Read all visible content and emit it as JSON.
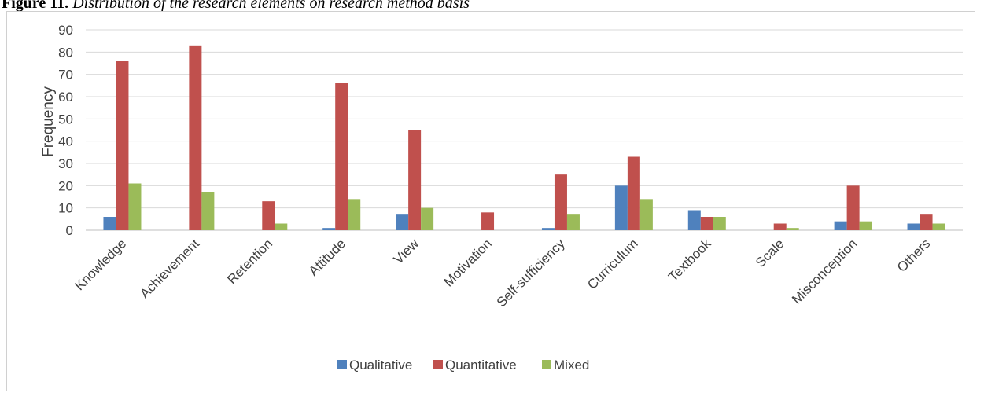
{
  "caption": {
    "label": "Figure 11.",
    "text": "Distribution of the research elements on research method basis"
  },
  "chart_data": {
    "type": "bar",
    "title": "",
    "xlabel": "",
    "ylabel": "Frequency",
    "ylim": [
      0,
      90
    ],
    "yticks": [
      0,
      10,
      20,
      30,
      40,
      50,
      60,
      70,
      80,
      90
    ],
    "grid": true,
    "legend_position": "bottom",
    "categories": [
      "Knowledge",
      "Achievement",
      "Retention",
      "Attitude",
      "View",
      "Motivation",
      "Self-sufficiency",
      "Curriculum",
      "Textbook",
      "Scale",
      "Misconception",
      "Others"
    ],
    "series": [
      {
        "name": "Qualitative",
        "color": "#4f81bd",
        "values": [
          6,
          0,
          0,
          1,
          7,
          0,
          1,
          20,
          9,
          0,
          4,
          3
        ]
      },
      {
        "name": "Quantitative",
        "color": "#c0504d",
        "values": [
          76,
          83,
          13,
          66,
          45,
          8,
          25,
          33,
          6,
          3,
          20,
          7
        ]
      },
      {
        "name": "Mixed",
        "color": "#9bbb59",
        "values": [
          21,
          17,
          3,
          14,
          10,
          0,
          7,
          14,
          6,
          1,
          4,
          3
        ]
      }
    ]
  }
}
